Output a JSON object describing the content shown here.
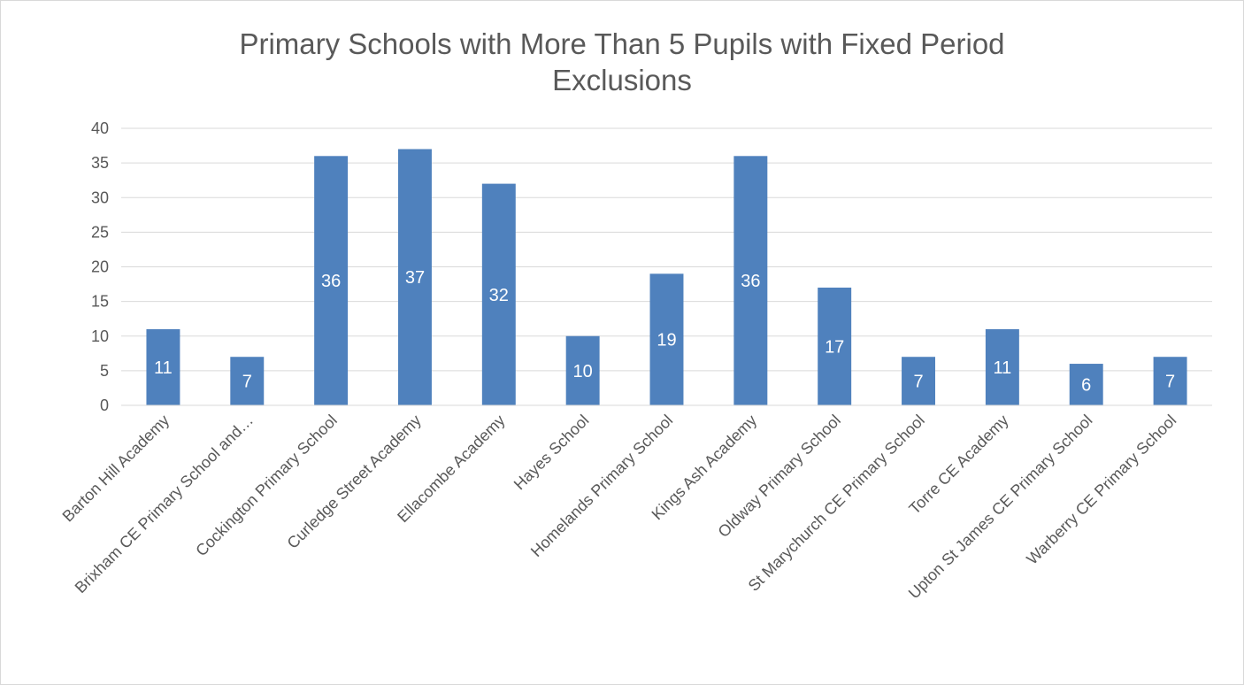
{
  "chart_data": {
    "type": "bar",
    "title_lines": [
      "Primary Schools with More Than 5 Pupils with Fixed Period",
      "Exclusions"
    ],
    "categories": [
      "Barton Hill Academy",
      "Brixham CE Primary School and…",
      "Cockington Primary School",
      "Curledge Street Academy",
      "Ellacombe Academy",
      "Hayes School",
      "Homelands Primary School",
      "Kings Ash Academy",
      "Oldway Primary School",
      "St Marychurch CE Primary School",
      "Torre CE Academy",
      "Upton St James CE Primary School",
      "Warberry CE Primary School"
    ],
    "values": [
      11,
      7,
      36,
      37,
      32,
      10,
      19,
      36,
      17,
      7,
      11,
      6,
      7
    ],
    "ylim": [
      0,
      40
    ],
    "yticks": [
      0,
      5,
      10,
      15,
      20,
      25,
      30,
      35,
      40
    ],
    "grid": true,
    "legend": "none",
    "data_labels": "inside-center",
    "colors": {
      "bar": "#4f81bd",
      "grid": "#d9d9d9",
      "text": "#595959",
      "data_label": "#ffffff"
    }
  }
}
